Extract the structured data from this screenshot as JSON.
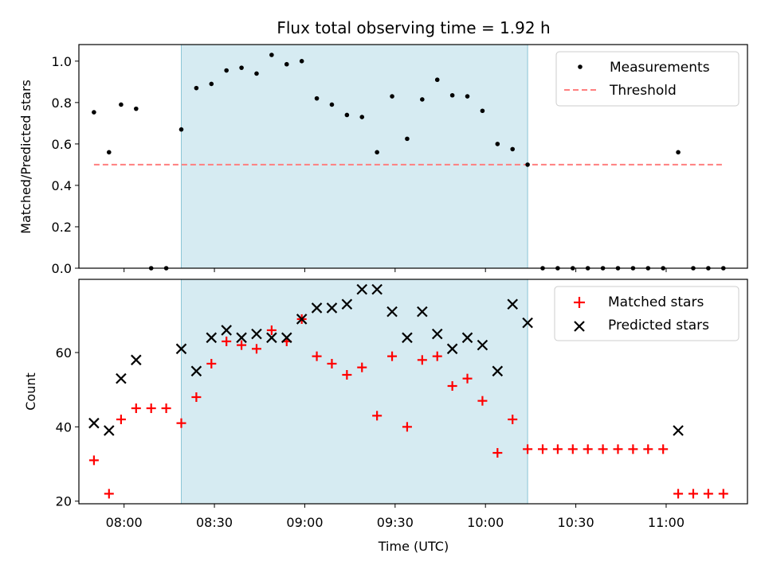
{
  "title": "Flux total observing time = 1.92 h",
  "chart_data": [
    {
      "type": "scatter",
      "panel": "top",
      "ylabel": "Matched/Predicted stars",
      "xlabel": "",
      "x_unit": "time of day (UTC, HH:MM)",
      "ylim": [
        0,
        1.08
      ],
      "yticks": [
        "0.0",
        "0.2",
        "0.4",
        "0.6",
        "0.8",
        "1.0"
      ],
      "xlim": [
        "07:45",
        "11:27"
      ],
      "grid": false,
      "legend_position": "top-right",
      "highlight_span": [
        "08:19",
        "10:14"
      ],
      "series": [
        {
          "name": "Measurements",
          "color": "#000000",
          "marker": "dot",
          "points": [
            [
              "07:50",
              0.753
            ],
            [
              "07:55",
              0.56
            ],
            [
              "07:59",
              0.79
            ],
            [
              "08:04",
              0.77
            ],
            [
              "08:09",
              0.0
            ],
            [
              "08:14",
              0.0
            ],
            [
              "08:19",
              0.67
            ],
            [
              "08:24",
              0.87
            ],
            [
              "08:29",
              0.89
            ],
            [
              "08:34",
              0.955
            ],
            [
              "08:39",
              0.968
            ],
            [
              "08:44",
              0.94
            ],
            [
              "08:49",
              1.03
            ],
            [
              "08:54",
              0.985
            ],
            [
              "08:59",
              1.0
            ],
            [
              "09:04",
              0.82
            ],
            [
              "09:09",
              0.79
            ],
            [
              "09:14",
              0.74
            ],
            [
              "09:19",
              0.73
            ],
            [
              "09:24",
              0.56
            ],
            [
              "09:29",
              0.83
            ],
            [
              "09:34",
              0.625
            ],
            [
              "09:39",
              0.815
            ],
            [
              "09:44",
              0.91
            ],
            [
              "09:49",
              0.835
            ],
            [
              "09:54",
              0.83
            ],
            [
              "09:59",
              0.76
            ],
            [
              "10:04",
              0.6
            ],
            [
              "10:09",
              0.575
            ],
            [
              "10:14",
              0.5
            ],
            [
              "10:19",
              0.0
            ],
            [
              "10:24",
              0.0
            ],
            [
              "10:29",
              0.0
            ],
            [
              "10:34",
              0.0
            ],
            [
              "10:39",
              0.0
            ],
            [
              "10:44",
              0.0
            ],
            [
              "10:49",
              0.0
            ],
            [
              "10:54",
              0.0
            ],
            [
              "10:59",
              0.0
            ],
            [
              "11:04",
              0.56
            ],
            [
              "11:09",
              0.0
            ],
            [
              "11:14",
              0.0
            ],
            [
              "11:19",
              0.0
            ]
          ]
        },
        {
          "name": "Threshold",
          "color": "#ff7f7f",
          "style": "dashed",
          "points": [
            [
              "07:50",
              0.5
            ],
            [
              "11:19",
              0.5
            ]
          ]
        }
      ]
    },
    {
      "type": "scatter",
      "panel": "bottom",
      "ylabel": "Count",
      "xlabel": "Time (UTC)",
      "x_unit": "time of day (UTC, HH:MM)",
      "ylim": [
        19.3,
        79.7
      ],
      "yticks": [
        "20",
        "40",
        "60"
      ],
      "xticks": [
        "08:00",
        "08:30",
        "09:00",
        "09:30",
        "10:00",
        "10:30",
        "11:00"
      ],
      "xlim": [
        "07:45",
        "11:27"
      ],
      "grid": false,
      "legend_position": "top-right",
      "highlight_span": [
        "08:19",
        "10:14"
      ],
      "series": [
        {
          "name": "Matched stars",
          "color": "#ff0000",
          "marker": "plus",
          "points": [
            [
              "07:50",
              31
            ],
            [
              "07:55",
              22
            ],
            [
              "07:59",
              42
            ],
            [
              "08:04",
              45
            ],
            [
              "08:09",
              45
            ],
            [
              "08:14",
              45
            ],
            [
              "08:19",
              41
            ],
            [
              "08:24",
              48
            ],
            [
              "08:29",
              57
            ],
            [
              "08:34",
              63
            ],
            [
              "08:39",
              62
            ],
            [
              "08:44",
              61
            ],
            [
              "08:49",
              66
            ],
            [
              "08:54",
              63
            ],
            [
              "08:59",
              69
            ],
            [
              "09:04",
              59
            ],
            [
              "09:09",
              57
            ],
            [
              "09:14",
              54
            ],
            [
              "09:19",
              56
            ],
            [
              "09:24",
              43
            ],
            [
              "09:29",
              59
            ],
            [
              "09:34",
              40
            ],
            [
              "09:39",
              58
            ],
            [
              "09:44",
              59
            ],
            [
              "09:49",
              51
            ],
            [
              "09:54",
              53
            ],
            [
              "09:59",
              47
            ],
            [
              "10:04",
              33
            ],
            [
              "10:09",
              42
            ],
            [
              "10:14",
              34
            ],
            [
              "10:19",
              34
            ],
            [
              "10:24",
              34
            ],
            [
              "10:29",
              34
            ],
            [
              "10:34",
              34
            ],
            [
              "10:39",
              34
            ],
            [
              "10:44",
              34
            ],
            [
              "10:49",
              34
            ],
            [
              "10:54",
              34
            ],
            [
              "10:59",
              34
            ],
            [
              "11:04",
              22
            ],
            [
              "11:09",
              22
            ],
            [
              "11:14",
              22
            ],
            [
              "11:19",
              22
            ]
          ]
        },
        {
          "name": "Predicted stars",
          "color": "#000000",
          "marker": "x",
          "points": [
            [
              "07:50",
              41
            ],
            [
              "07:55",
              39
            ],
            [
              "07:59",
              53
            ],
            [
              "08:04",
              58
            ],
            [
              "08:19",
              61
            ],
            [
              "08:24",
              55
            ],
            [
              "08:29",
              64
            ],
            [
              "08:34",
              66
            ],
            [
              "08:39",
              64
            ],
            [
              "08:44",
              65
            ],
            [
              "08:49",
              64
            ],
            [
              "08:54",
              64
            ],
            [
              "08:59",
              69
            ],
            [
              "09:04",
              72
            ],
            [
              "09:09",
              72
            ],
            [
              "09:14",
              73
            ],
            [
              "09:19",
              77
            ],
            [
              "09:24",
              77
            ],
            [
              "09:29",
              71
            ],
            [
              "09:34",
              64
            ],
            [
              "09:39",
              71
            ],
            [
              "09:44",
              65
            ],
            [
              "09:49",
              61
            ],
            [
              "09:54",
              64
            ],
            [
              "09:59",
              62
            ],
            [
              "10:04",
              55
            ],
            [
              "10:09",
              73
            ],
            [
              "10:14",
              68
            ],
            [
              "11:04",
              39
            ]
          ]
        }
      ]
    }
  ]
}
